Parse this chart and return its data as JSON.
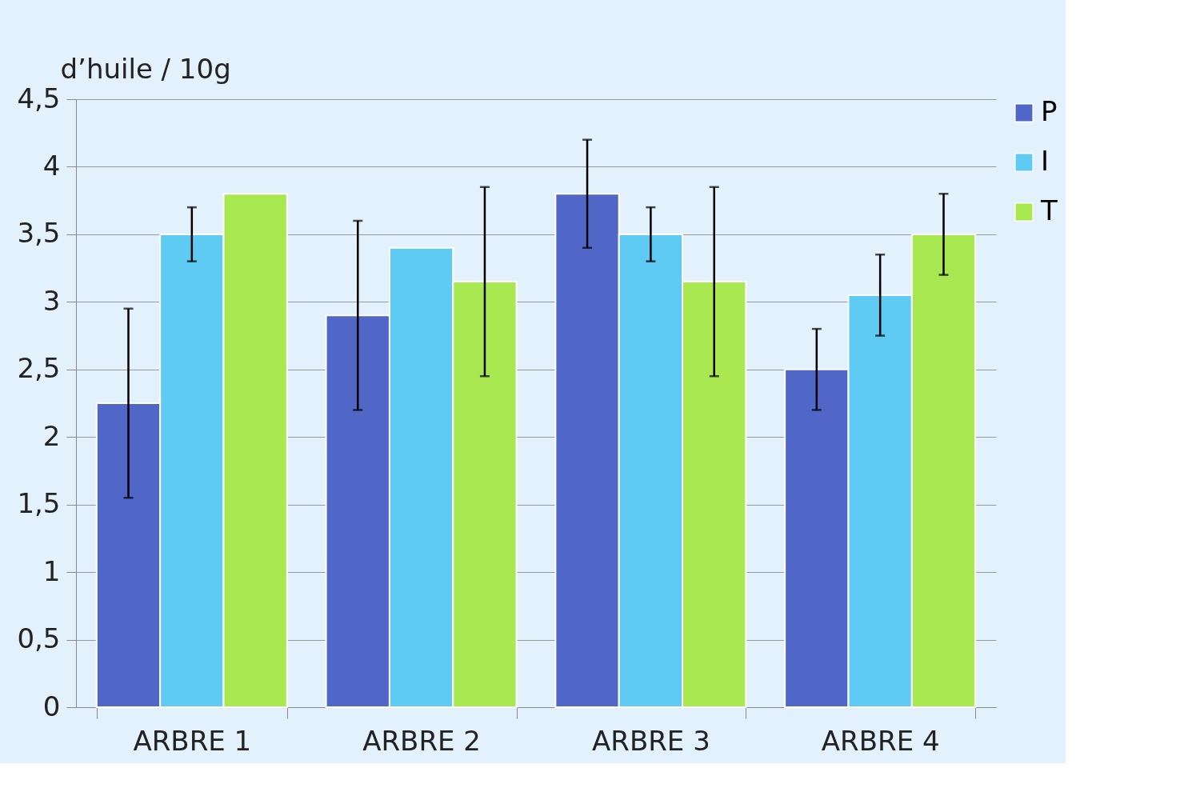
{
  "chart_data": {
    "type": "bar",
    "ylabel": "d’huile / 10g",
    "categories": [
      "ARBRE 1",
      "ARBRE 2",
      "ARBRE 3",
      "ARBRE 4"
    ],
    "series": [
      {
        "name": "P",
        "color": "#5067c8",
        "values": [
          2.25,
          2.9,
          3.8,
          2.5
        ],
        "errors": [
          0.7,
          0.7,
          0.4,
          0.3
        ]
      },
      {
        "name": "I",
        "color": "#5fcbf2",
        "values": [
          3.5,
          3.4,
          3.5,
          3.05
        ],
        "errors": [
          0.2,
          null,
          0.2,
          0.3
        ]
      },
      {
        "name": "T",
        "color": "#a9e851",
        "values": [
          3.8,
          3.15,
          3.15,
          3.5
        ],
        "errors": [
          null,
          0.7,
          0.7,
          0.3
        ]
      }
    ],
    "ylim": [
      0,
      4.5
    ],
    "yticks": [
      0,
      {
        "value": 0.5,
        "label": "0,5"
      },
      1,
      {
        "value": 1.5,
        "label": "1,5"
      },
      2,
      {
        "value": 2.5,
        "label": "2,5"
      },
      3,
      {
        "value": 3.5,
        "label": "3,5"
      },
      4,
      {
        "value": 4.5,
        "label": "4,5"
      }
    ],
    "grid": "y",
    "legend": "right"
  }
}
